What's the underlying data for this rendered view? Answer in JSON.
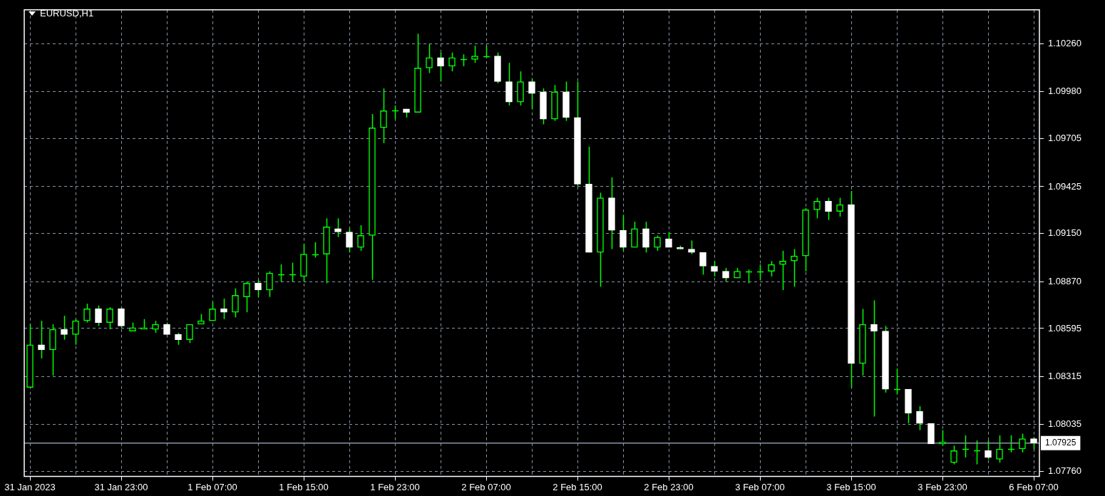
{
  "chart_data": {
    "type": "candlestick",
    "title": "EURUSD,H1",
    "categories": [
      "31 Jan 2023",
      null,
      null,
      null,
      null,
      null,
      null,
      null,
      "31 Jan 23:00",
      null,
      null,
      null,
      null,
      null,
      null,
      null,
      "1 Feb 07:00",
      null,
      null,
      null,
      null,
      null,
      null,
      null,
      "1 Feb 15:00",
      null,
      null,
      null,
      null,
      null,
      null,
      null,
      "1 Feb 23:00",
      null,
      null,
      null,
      null,
      null,
      null,
      null,
      "2 Feb 07:00",
      null,
      null,
      null,
      null,
      null,
      null,
      null,
      "2 Feb 15:00",
      null,
      null,
      null,
      null,
      null,
      null,
      null,
      "2 Feb 23:00",
      null,
      null,
      null,
      null,
      null,
      null,
      null,
      "3 Feb 07:00",
      null,
      null,
      null,
      null,
      null,
      null,
      null,
      "3 Feb 15:00",
      null,
      null,
      null,
      null,
      null,
      null,
      null,
      "3 Feb 23:00",
      null,
      null,
      null,
      null,
      null,
      null,
      null,
      "6 Feb 07:00"
    ],
    "ohlc": [
      [
        1.0825,
        1.0862,
        1.0825,
        1.085
      ],
      [
        1.085,
        1.0864,
        1.0842,
        1.0847
      ],
      [
        1.0847,
        1.0862,
        1.0832,
        1.0859
      ],
      [
        1.0859,
        1.0867,
        1.0853,
        1.0856
      ],
      [
        1.0856,
        1.0865,
        1.085,
        1.0864
      ],
      [
        1.0864,
        1.0874,
        1.0863,
        1.0871
      ],
      [
        1.0871,
        1.0873,
        1.0861,
        1.0863
      ],
      [
        1.0863,
        1.0872,
        1.0859,
        1.0871
      ],
      [
        1.0871,
        1.0872,
        1.086,
        1.0861
      ],
      [
        1.0858,
        1.0863,
        1.0858,
        1.086
      ],
      [
        1.0859,
        1.0865,
        1.0859,
        1.086
      ],
      [
        1.0859,
        1.0864,
        1.0857,
        1.0862
      ],
      [
        1.0862,
        1.0863,
        1.0856,
        1.0856
      ],
      [
        1.0856,
        1.0857,
        1.085,
        1.0853
      ],
      [
        1.0853,
        1.0862,
        1.0851,
        1.0862
      ],
      [
        1.0862,
        1.0868,
        1.0862,
        1.0864
      ],
      [
        1.0864,
        1.0875,
        1.0864,
        1.0871
      ],
      [
        1.0871,
        1.0877,
        1.0865,
        1.0869
      ],
      [
        1.0869,
        1.0883,
        1.0866,
        1.0879
      ],
      [
        1.0878,
        1.0887,
        1.0869,
        1.0886
      ],
      [
        1.0886,
        1.0888,
        1.0878,
        1.0882
      ],
      [
        1.0882,
        1.0893,
        1.0878,
        1.0892
      ],
      [
        1.0891,
        1.0897,
        1.0887,
        1.0891
      ],
      [
        1.0891,
        1.0898,
        1.0887,
        1.0891
      ],
      [
        1.089,
        1.0909,
        1.0887,
        1.0903
      ],
      [
        1.0903,
        1.091,
        1.0901,
        1.0903
      ],
      [
        1.0903,
        1.0924,
        1.0886,
        1.0919
      ],
      [
        1.0918,
        1.0924,
        1.0913,
        1.0916
      ],
      [
        1.0916,
        1.0918,
        1.0904,
        1.0907
      ],
      [
        1.0907,
        1.092,
        1.0905,
        1.0914
      ],
      [
        1.0914,
        1.0985,
        1.0888,
        1.0977
      ],
      [
        1.0977,
        1.1,
        1.0968,
        1.0987
      ],
      [
        1.0987,
        1.099,
        1.0982,
        1.0987
      ],
      [
        1.0988,
        1.0988,
        1.0983,
        1.0986
      ],
      [
        1.0986,
        1.1032,
        1.0986,
        1.1012
      ],
      [
        1.1012,
        1.1026,
        1.1009,
        1.1018
      ],
      [
        1.1018,
        1.1021,
        1.1004,
        1.1013
      ],
      [
        1.1013,
        1.1021,
        1.101,
        1.1018
      ],
      [
        1.1017,
        1.102,
        1.1013,
        1.1017
      ],
      [
        1.1017,
        1.1025,
        1.1015,
        1.1019
      ],
      [
        1.1019,
        1.1025,
        1.1018,
        1.1019
      ],
      [
        1.1019,
        1.1021,
        1.1003,
        1.1004
      ],
      [
        1.1004,
        1.1015,
        1.099,
        1.0992
      ],
      [
        1.0992,
        1.101,
        1.099,
        1.1004
      ],
      [
        1.1004,
        1.1006,
        1.0988,
        1.0997
      ],
      [
        1.0998,
        1.1,
        1.0979,
        1.0982
      ],
      [
        1.0982,
        1.1002,
        1.0981,
        1.0998
      ],
      [
        1.0998,
        1.1004,
        1.0981,
        1.0983
      ],
      [
        1.0983,
        1.1004,
        1.0943,
        1.0944
      ],
      [
        1.0944,
        1.0966,
        1.0904,
        1.0904
      ],
      [
        1.0904,
        1.0939,
        1.0884,
        1.0936
      ],
      [
        1.0936,
        1.0948,
        1.0906,
        1.0917
      ],
      [
        1.0917,
        1.0926,
        1.0905,
        1.0907
      ],
      [
        1.0907,
        1.0922,
        1.0907,
        1.0918
      ],
      [
        1.0918,
        1.0922,
        1.0904,
        1.0907
      ],
      [
        1.0907,
        1.0914,
        1.0905,
        1.0913
      ],
      [
        1.0912,
        1.0916,
        1.0907,
        1.0907
      ],
      [
        1.0907,
        1.0908,
        1.0906,
        1.0906
      ],
      [
        1.0906,
        1.0911,
        1.0903,
        1.0904
      ],
      [
        1.0904,
        1.0904,
        1.0891,
        1.0896
      ],
      [
        1.0896,
        1.0899,
        1.089,
        1.0893
      ],
      [
        1.0893,
        1.0895,
        1.0887,
        1.0889
      ],
      [
        1.0889,
        1.0895,
        1.0889,
        1.0893
      ],
      [
        1.0893,
        1.0894,
        1.0886,
        1.0893
      ],
      [
        1.0893,
        1.0897,
        1.0888,
        1.0893
      ],
      [
        1.0893,
        1.0899,
        1.089,
        1.0897
      ],
      [
        1.0897,
        1.0905,
        1.0882,
        1.0899
      ],
      [
        1.0899,
        1.0906,
        1.0884,
        1.0902
      ],
      [
        1.0902,
        1.093,
        1.0893,
        1.0929
      ],
      [
        1.0929,
        1.0936,
        1.0924,
        1.0934
      ],
      [
        1.0934,
        1.0936,
        1.0923,
        1.0928
      ],
      [
        1.0928,
        1.0936,
        1.0925,
        1.0932
      ],
      [
        1.0932,
        1.094,
        1.0825,
        1.0839
      ],
      [
        1.0839,
        1.0871,
        1.0832,
        1.0862
      ],
      [
        1.0862,
        1.0876,
        1.0808,
        1.0858
      ],
      [
        1.0858,
        1.0861,
        1.0822,
        1.0824
      ],
      [
        1.0824,
        1.0836,
        1.0821,
        1.0824
      ],
      [
        1.0824,
        1.0824,
        1.0804,
        1.081
      ],
      [
        1.0811,
        1.0814,
        1.08,
        1.0804
      ],
      [
        1.0804,
        1.0804,
        1.0792,
        1.0792
      ],
      [
        1.0792,
        1.08,
        1.0791,
        1.0793
      ],
      [
        1.0781,
        1.0791,
        1.078,
        1.0788
      ],
      [
        1.0789,
        1.0797,
        1.0784,
        1.0789
      ],
      [
        1.0788,
        1.0794,
        1.078,
        1.0788
      ],
      [
        1.0788,
        1.0794,
        1.0783,
        1.0784
      ],
      [
        1.0783,
        1.0797,
        1.0781,
        1.0789
      ],
      [
        1.0789,
        1.0797,
        1.0787,
        1.0789
      ],
      [
        1.0789,
        1.0798,
        1.0787,
        1.0795
      ],
      [
        1.0795,
        1.0796,
        1.0789,
        1.07925
      ]
    ],
    "color": "#00ff00",
    "colors": [
      "#00ff00",
      "#ffffff",
      "#00ff00",
      "#ffffff",
      "#00ff00",
      "#00ff00",
      "#ffffff",
      "#00ff00",
      "#ffffff",
      "#00ff00",
      "#00ff00",
      "#00ff00",
      "#ffffff",
      "#ffffff",
      "#00ff00",
      "#00ff00",
      "#00ff00",
      "#ffffff",
      "#00ff00",
      "#00ff00",
      "#ffffff",
      "#00ff00",
      "#00ff00",
      "#00ff00",
      "#00ff00",
      "#00ff00",
      "#00ff00",
      "#ffffff",
      "#ffffff",
      "#00ff00",
      "#00ff00",
      "#00ff00",
      "#00ff00",
      "#ffffff",
      "#00ff00",
      "#00ff00",
      "#ffffff",
      "#00ff00",
      "#00ff00",
      "#00ff00",
      "#00ff00",
      "#ffffff",
      "#ffffff",
      "#00ff00",
      "#ffffff",
      "#ffffff",
      "#00ff00",
      "#ffffff",
      "#ffffff",
      "#ffffff",
      "#00ff00",
      "#ffffff",
      "#ffffff",
      "#00ff00",
      "#ffffff",
      "#00ff00",
      "#ffffff",
      "#ffffff",
      "#ffffff",
      "#ffffff",
      "#ffffff",
      "#ffffff",
      "#00ff00",
      "#00ff00",
      "#00ff00",
      "#00ff00",
      "#00ff00",
      "#00ff00",
      "#00ff00",
      "#00ff00",
      "#ffffff",
      "#00ff00",
      "#ffffff",
      "#00ff00",
      "#ffffff",
      "#ffffff",
      "#00ff00",
      "#ffffff",
      "#ffffff",
      "#ffffff",
      "#00ff00",
      "#00ff00",
      "#00ff00",
      "#00ff00",
      "#ffffff",
      "#00ff00",
      "#00ff00",
      "#00ff00",
      "#ffffff"
    ],
    "ylim": [
      1.0773,
      1.1046
    ],
    "yticks": [
      {
        "value": 1.0776,
        "label": "1.07760"
      },
      {
        "value": 1.08035,
        "label": "1.08035"
      },
      {
        "value": 1.08315,
        "label": "1.08315"
      },
      {
        "value": 1.08595,
        "label": "1.08595"
      },
      {
        "value": 1.0887,
        "label": "1.08870"
      },
      {
        "value": 1.0915,
        "label": "1.09150"
      },
      {
        "value": 1.09425,
        "label": "1.09425"
      },
      {
        "value": 1.09705,
        "label": "1.09705"
      },
      {
        "value": 1.0998,
        "label": "1.09980"
      },
      {
        "value": 1.1026,
        "label": "1.10260"
      }
    ],
    "grid": true,
    "ref_lines": [
      {
        "axis": "y",
        "value": 1.07925,
        "label": "1.07925",
        "color": "#8a96a6"
      }
    ]
  }
}
